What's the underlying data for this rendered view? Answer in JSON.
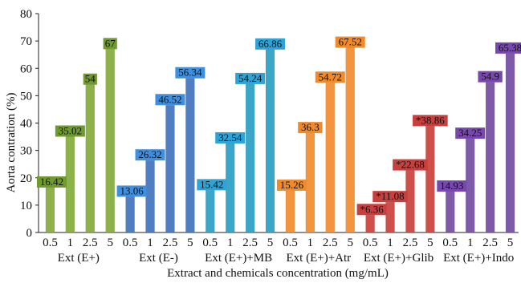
{
  "chart_data": {
    "type": "bar",
    "ylabel": "Aorta contration (%)",
    "xlabel": "Extract and chemicals concentration (mg/mL)",
    "ylim": [
      0,
      80
    ],
    "yticks": [
      0,
      10,
      20,
      30,
      40,
      50,
      60,
      70,
      80
    ],
    "concentrations": [
      "0.5",
      "1",
      "2.5",
      "5"
    ],
    "groups": [
      {
        "name": "Ext (E+)",
        "color": "#8db24a",
        "label_color": "#6e9a2e",
        "values": [
          16.42,
          35.02,
          54,
          67
        ],
        "labels": [
          "16.42",
          "35.02",
          "54",
          "67"
        ]
      },
      {
        "name": "Ext (E-)",
        "color": "#4f7fc2",
        "label_color": "#3f8fe0",
        "values": [
          13.06,
          26.32,
          46.52,
          56.34
        ],
        "labels": [
          "13.06",
          "26.32",
          "46.52",
          "56.34"
        ]
      },
      {
        "name": "Ext (E+)+MB",
        "color": "#3aa7c8",
        "label_color": "#2ea3d8",
        "values": [
          15.42,
          32.54,
          54.24,
          66.86
        ],
        "labels": [
          "15.42",
          "32.54",
          "54.24",
          "66.86"
        ]
      },
      {
        "name": "Ext (E+)+Atr",
        "color": "#f3953e",
        "label_color": "#f08a2a",
        "values": [
          15.26,
          36.3,
          54.72,
          67.52
        ],
        "labels": [
          "15.26",
          "36.3",
          "54.72",
          "67.52"
        ]
      },
      {
        "name": "Ext (E+)+Glib",
        "color": "#cf4f4b",
        "label_color": "#c8403d",
        "values": [
          6.36,
          11.08,
          22.68,
          38.86
        ],
        "labels": [
          "*6.36",
          "*11.08",
          "*22.68",
          "*38.86"
        ]
      },
      {
        "name": "Ext (E+)+Indo",
        "color": "#7e5aa8",
        "label_color": "#7848b0",
        "values": [
          14.93,
          34.25,
          54.9,
          65.38
        ],
        "labels": [
          "14.93",
          "34.25",
          "54.9",
          "65.38"
        ]
      }
    ]
  }
}
